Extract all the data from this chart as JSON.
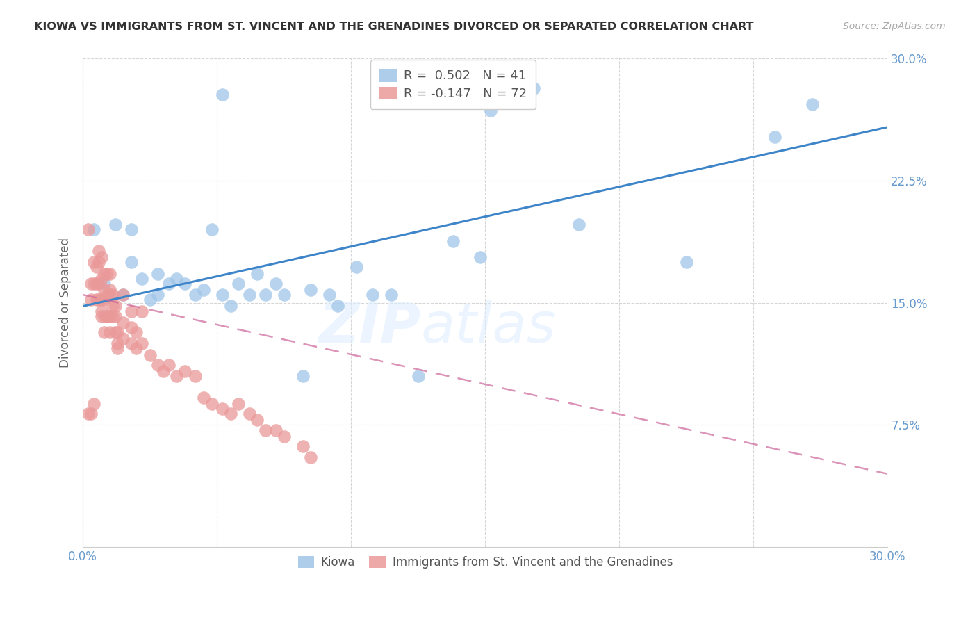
{
  "title": "KIOWA VS IMMIGRANTS FROM ST. VINCENT AND THE GRENADINES DIVORCED OR SEPARATED CORRELATION CHART",
  "source": "Source: ZipAtlas.com",
  "ylabel": "Divorced or Separated",
  "xmin": 0.0,
  "xmax": 0.3,
  "ymin": 0.0,
  "ymax": 0.3,
  "yticks": [
    0.075,
    0.15,
    0.225,
    0.3
  ],
  "ytick_labels": [
    "7.5%",
    "15.0%",
    "22.5%",
    "30.0%"
  ],
  "xticks": [
    0.0,
    0.05,
    0.1,
    0.15,
    0.2,
    0.25,
    0.3
  ],
  "xtick_labels": [
    "0.0%",
    "",
    "",
    "",
    "",
    "",
    "30.0%"
  ],
  "legend_label1": "Kiowa",
  "legend_label2": "Immigrants from St. Vincent and the Grenadines",
  "R1": " 0.502",
  "N1": "41",
  "R2": "-0.147",
  "N2": "72",
  "color_blue": "#9fc5e8",
  "color_pink": "#ea9999",
  "line_color_blue": "#3d85c8",
  "line_color_pink_dash": "#cc6699",
  "axis_color": "#6699cc",
  "grid_color": "#cccccc",
  "watermark_zip": "ZIP",
  "watermark_atlas": "atlas",
  "blue_points_x": [
    0.004,
    0.008,
    0.012,
    0.015,
    0.018,
    0.018,
    0.022,
    0.025,
    0.028,
    0.028,
    0.032,
    0.035,
    0.038,
    0.042,
    0.045,
    0.048,
    0.052,
    0.055,
    0.058,
    0.062,
    0.065,
    0.068,
    0.072,
    0.075,
    0.082,
    0.085,
    0.092,
    0.095,
    0.102,
    0.108,
    0.115,
    0.125,
    0.138,
    0.152,
    0.168,
    0.185,
    0.225,
    0.258,
    0.272,
    0.148,
    0.052
  ],
  "blue_points_y": [
    0.195,
    0.162,
    0.198,
    0.155,
    0.175,
    0.195,
    0.165,
    0.152,
    0.168,
    0.155,
    0.162,
    0.165,
    0.162,
    0.155,
    0.158,
    0.195,
    0.155,
    0.148,
    0.162,
    0.155,
    0.168,
    0.155,
    0.162,
    0.155,
    0.105,
    0.158,
    0.155,
    0.148,
    0.172,
    0.155,
    0.155,
    0.105,
    0.188,
    0.268,
    0.282,
    0.198,
    0.175,
    0.252,
    0.272,
    0.178,
    0.278
  ],
  "pink_points_x": [
    0.002,
    0.003,
    0.003,
    0.004,
    0.004,
    0.005,
    0.005,
    0.005,
    0.006,
    0.006,
    0.006,
    0.007,
    0.007,
    0.007,
    0.007,
    0.008,
    0.008,
    0.008,
    0.008,
    0.009,
    0.009,
    0.009,
    0.01,
    0.01,
    0.01,
    0.01,
    0.011,
    0.011,
    0.012,
    0.012,
    0.013,
    0.013,
    0.015,
    0.015,
    0.018,
    0.018,
    0.02,
    0.02,
    0.022,
    0.025,
    0.028,
    0.03,
    0.032,
    0.035,
    0.038,
    0.042,
    0.045,
    0.048,
    0.052,
    0.055,
    0.058,
    0.062,
    0.065,
    0.068,
    0.072,
    0.075,
    0.082,
    0.085,
    0.015,
    0.018,
    0.022,
    0.006,
    0.007,
    0.008,
    0.009,
    0.01,
    0.011,
    0.012,
    0.013,
    0.002,
    0.003,
    0.004
  ],
  "pink_points_y": [
    0.195,
    0.162,
    0.152,
    0.175,
    0.162,
    0.172,
    0.162,
    0.152,
    0.175,
    0.162,
    0.152,
    0.178,
    0.165,
    0.152,
    0.142,
    0.168,
    0.152,
    0.142,
    0.132,
    0.168,
    0.155,
    0.142,
    0.168,
    0.155,
    0.142,
    0.132,
    0.155,
    0.142,
    0.142,
    0.132,
    0.132,
    0.122,
    0.138,
    0.128,
    0.135,
    0.125,
    0.132,
    0.122,
    0.125,
    0.118,
    0.112,
    0.108,
    0.112,
    0.105,
    0.108,
    0.105,
    0.092,
    0.088,
    0.085,
    0.082,
    0.088,
    0.082,
    0.078,
    0.072,
    0.072,
    0.068,
    0.062,
    0.055,
    0.155,
    0.145,
    0.145,
    0.182,
    0.145,
    0.158,
    0.142,
    0.158,
    0.148,
    0.148,
    0.125,
    0.082,
    0.082,
    0.088
  ],
  "blue_line_x": [
    0.0,
    0.3
  ],
  "blue_line_y": [
    0.148,
    0.258
  ],
  "pink_line_x": [
    0.0,
    0.3
  ],
  "pink_line_y": [
    0.155,
    0.045
  ]
}
